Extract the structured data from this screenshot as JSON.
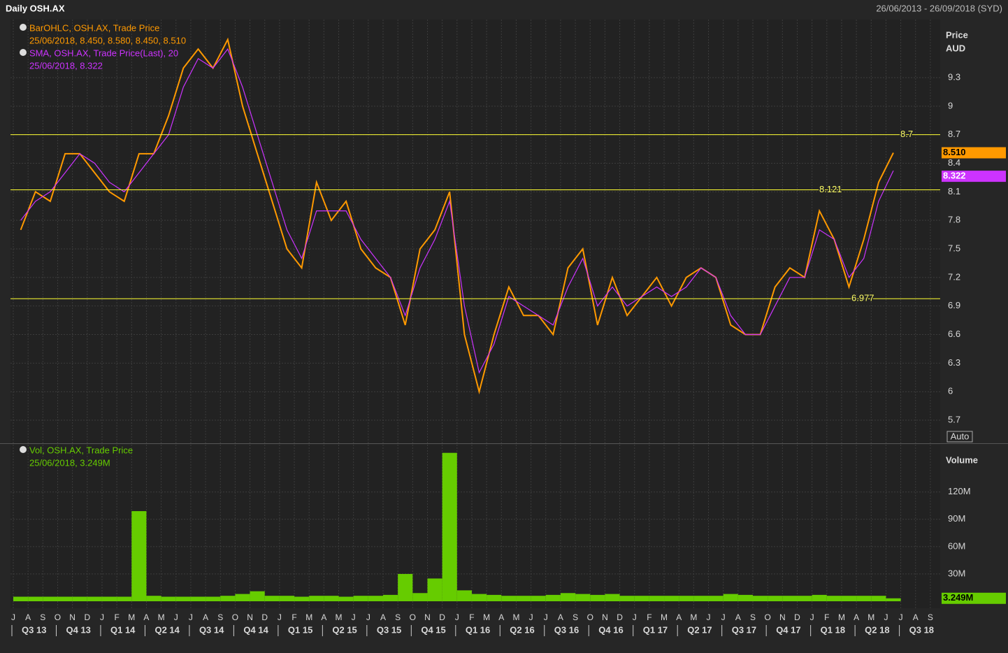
{
  "header": {
    "title": "Daily OSH.AX",
    "range": "26/06/2013 - 26/09/2018 (SYD)"
  },
  "chart_data": [
    {
      "type": "line",
      "axis_title": [
        "Price",
        "AUD"
      ],
      "scale_mode": "Auto",
      "categories": [
        "J",
        "A",
        "S",
        "O",
        "N",
        "D",
        "J",
        "F",
        "M",
        "A",
        "M",
        "J",
        "J",
        "A",
        "S",
        "O",
        "N",
        "D",
        "J",
        "F",
        "M",
        "A",
        "M",
        "J",
        "J",
        "A",
        "S",
        "O",
        "N",
        "D",
        "J",
        "F",
        "M",
        "A",
        "M",
        "J",
        "J",
        "A",
        "S",
        "O",
        "N",
        "D",
        "J",
        "F",
        "M",
        "A",
        "M",
        "J",
        "J",
        "A",
        "S",
        "O",
        "N",
        "D",
        "J",
        "F",
        "M",
        "A",
        "M",
        "J",
        "J",
        "A",
        "S"
      ],
      "quarters": [
        "Q3 13",
        "Q4 13",
        "Q1 14",
        "Q2 14",
        "Q3 14",
        "Q4 14",
        "Q1 15",
        "Q2 15",
        "Q3 15",
        "Q4 15",
        "Q1 16",
        "Q2 16",
        "Q3 16",
        "Q4 16",
        "Q1 17",
        "Q2 17",
        "Q3 17",
        "Q4 17",
        "Q1 18",
        "Q2 18",
        "Q3 18"
      ],
      "series": [
        {
          "name": "BarOHLC, OSH.AX, Trade Price",
          "detail": "25/06/2018, 8.450, 8.580, 8.450, 8.510",
          "color": "#ff9900",
          "last_value": 8.51,
          "last_label": "8.510",
          "values": [
            7.7,
            8.1,
            8.0,
            8.5,
            8.5,
            8.3,
            8.1,
            8.0,
            8.5,
            8.5,
            8.9,
            9.4,
            9.6,
            9.4,
            9.7,
            9.0,
            8.5,
            8.0,
            7.5,
            7.3,
            8.2,
            7.8,
            8.0,
            7.5,
            7.3,
            7.2,
            6.7,
            7.5,
            7.7,
            8.1,
            6.6,
            6.0,
            6.6,
            7.1,
            6.8,
            6.8,
            6.6,
            7.3,
            7.5,
            6.7,
            7.2,
            6.8,
            7.0,
            7.2,
            6.9,
            7.2,
            7.3,
            7.2,
            6.7,
            6.6,
            6.6,
            7.1,
            7.3,
            7.2,
            7.9,
            7.6,
            7.1,
            7.6,
            8.2,
            8.51,
            null,
            null,
            null
          ]
        },
        {
          "name": "SMA, OSH.AX, Trade Price(Last),  20",
          "detail": "25/06/2018, 8.322",
          "color": "#cc33ff",
          "last_value": 8.322,
          "values": [
            7.8,
            8.0,
            8.1,
            8.3,
            8.5,
            8.4,
            8.2,
            8.1,
            8.3,
            8.5,
            8.7,
            9.2,
            9.5,
            9.4,
            9.6,
            9.2,
            8.7,
            8.2,
            7.7,
            7.4,
            7.9,
            7.9,
            7.9,
            7.6,
            7.4,
            7.2,
            6.8,
            7.3,
            7.6,
            8.0,
            6.9,
            6.2,
            6.5,
            7.0,
            6.9,
            6.8,
            6.7,
            7.1,
            7.4,
            6.9,
            7.1,
            6.9,
            7.0,
            7.1,
            7.0,
            7.1,
            7.3,
            7.2,
            6.8,
            6.6,
            6.6,
            6.9,
            7.2,
            7.2,
            7.7,
            7.6,
            7.2,
            7.4,
            8.0,
            8.322,
            null,
            null,
            null
          ]
        }
      ],
      "levels": [
        8.7,
        8.121,
        6.977
      ],
      "ylim": [
        5.46,
        9.9
      ],
      "yticks": [
        5.7,
        6,
        6.3,
        6.6,
        6.9,
        7.2,
        7.5,
        7.8,
        8.1,
        8.4,
        8.7,
        9,
        9.3
      ],
      "grid": true
    },
    {
      "type": "bar",
      "axis_title": "Volume",
      "series": [
        {
          "name": "Vol, OSH.AX, Trade Price",
          "detail": "25/06/2018, 3.249M",
          "color": "#66cc00",
          "last_value": 3249000,
          "last_label": "3.249M",
          "values": [
            5000000,
            5000000,
            5000000,
            5000000,
            5000000,
            5000000,
            5000000,
            5000000,
            99000000,
            6000000,
            5000000,
            5000000,
            5000000,
            5000000,
            6000000,
            8000000,
            11000000,
            6000000,
            6000000,
            5000000,
            6000000,
            6000000,
            5000000,
            6000000,
            6000000,
            7000000,
            30000000,
            9000000,
            25000000,
            163000000,
            12000000,
            8000000,
            7000000,
            6000000,
            6000000,
            6000000,
            7000000,
            9000000,
            8000000,
            7000000,
            8000000,
            6000000,
            6000000,
            6000000,
            6000000,
            6000000,
            6000000,
            6000000,
            8000000,
            7000000,
            6000000,
            6000000,
            6000000,
            6000000,
            7000000,
            6000000,
            6000000,
            6000000,
            6000000,
            3249000,
            null,
            null,
            null
          ]
        }
      ],
      "ylim": [
        0,
        172000000
      ],
      "yticks": [
        {
          "value": 30000000,
          "label": "30M"
        },
        {
          "value": 60000000,
          "label": "60M"
        },
        {
          "value": 90000000,
          "label": "90M"
        },
        {
          "value": 120000000,
          "label": "120M"
        }
      ],
      "grid": true
    }
  ]
}
